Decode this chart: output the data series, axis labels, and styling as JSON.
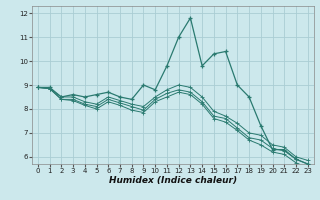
{
  "xlabel": "Humidex (Indice chaleur)",
  "background_color": "#cce8ec",
  "grid_color": "#aacdd4",
  "line_color": "#2a7a70",
  "xlim": [
    -0.5,
    23.5
  ],
  "ylim": [
    5.7,
    12.3
  ],
  "yticks": [
    6,
    7,
    8,
    9,
    10,
    11,
    12
  ],
  "xticks": [
    0,
    1,
    2,
    3,
    4,
    5,
    6,
    7,
    8,
    9,
    10,
    11,
    12,
    13,
    14,
    15,
    16,
    17,
    18,
    19,
    20,
    21,
    22,
    23
  ],
  "series_main": [
    8.9,
    8.9,
    8.5,
    8.6,
    8.5,
    8.6,
    8.7,
    8.5,
    8.4,
    9.0,
    8.8,
    9.8,
    11.0,
    11.8,
    9.8,
    10.3,
    10.4,
    9.0,
    8.5,
    7.3,
    6.3,
    6.3,
    5.9,
    5.7
  ],
  "series_trend": [
    [
      8.9,
      8.85,
      8.5,
      8.5,
      8.3,
      8.2,
      8.5,
      8.35,
      8.2,
      8.1,
      8.5,
      8.8,
      9.0,
      8.9,
      8.5,
      7.9,
      7.7,
      7.4,
      7.0,
      6.9,
      6.5,
      6.4,
      6.0,
      5.85
    ],
    [
      8.9,
      8.85,
      8.4,
      8.4,
      8.2,
      8.1,
      8.4,
      8.25,
      8.1,
      7.95,
      8.4,
      8.65,
      8.8,
      8.7,
      8.3,
      7.7,
      7.6,
      7.2,
      6.8,
      6.7,
      6.35,
      6.25,
      5.9,
      5.7
    ],
    [
      8.9,
      8.85,
      8.4,
      8.35,
      8.15,
      8.0,
      8.3,
      8.15,
      7.95,
      7.85,
      8.3,
      8.5,
      8.7,
      8.6,
      8.2,
      7.6,
      7.45,
      7.1,
      6.7,
      6.5,
      6.2,
      6.1,
      5.75,
      5.55
    ]
  ]
}
